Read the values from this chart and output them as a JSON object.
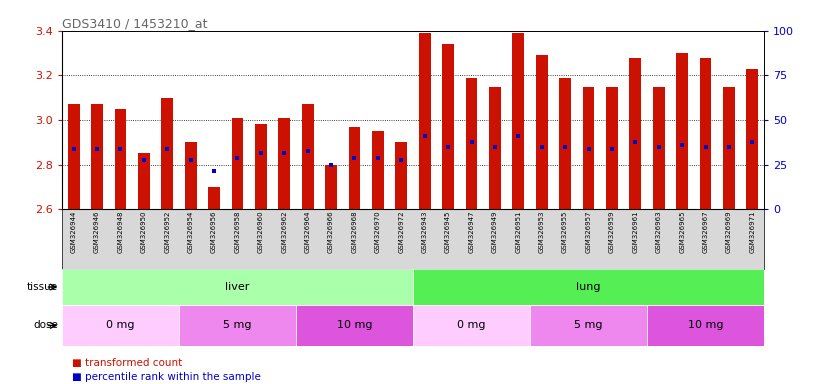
{
  "title": "GDS3410 / 1453210_at",
  "samples": [
    "GSM326944",
    "GSM326946",
    "GSM326948",
    "GSM326950",
    "GSM326952",
    "GSM326954",
    "GSM326956",
    "GSM326958",
    "GSM326960",
    "GSM326962",
    "GSM326964",
    "GSM326966",
    "GSM326968",
    "GSM326970",
    "GSM326972",
    "GSM326943",
    "GSM326945",
    "GSM326947",
    "GSM326949",
    "GSM326951",
    "GSM326953",
    "GSM326955",
    "GSM326957",
    "GSM326959",
    "GSM326961",
    "GSM326963",
    "GSM326965",
    "GSM326967",
    "GSM326969",
    "GSM326971"
  ],
  "bar_heights": [
    3.07,
    3.07,
    3.05,
    2.85,
    3.1,
    2.9,
    2.7,
    3.01,
    2.98,
    3.01,
    3.07,
    2.8,
    2.97,
    2.95,
    2.9,
    3.39,
    3.34,
    3.19,
    3.15,
    3.39,
    3.29,
    3.19,
    3.15,
    3.15,
    3.28,
    3.15,
    3.3,
    3.28,
    3.15,
    3.23
  ],
  "percentile_values": [
    2.87,
    2.87,
    2.87,
    2.82,
    2.87,
    2.82,
    2.77,
    2.83,
    2.85,
    2.85,
    2.86,
    2.8,
    2.83,
    2.83,
    2.82,
    2.93,
    2.88,
    2.9,
    2.88,
    2.93,
    2.88,
    2.88,
    2.87,
    2.87,
    2.9,
    2.88,
    2.89,
    2.88,
    2.88,
    2.9
  ],
  "ylim": [
    2.6,
    3.4
  ],
  "y_ticks": [
    2.6,
    2.8,
    3.0,
    3.2,
    3.4
  ],
  "right_ticks": [
    0,
    25,
    50,
    75,
    100
  ],
  "tissue_groups": [
    {
      "label": "liver",
      "start": 0,
      "end": 15,
      "color": "#aaffaa"
    },
    {
      "label": "lung",
      "start": 15,
      "end": 30,
      "color": "#55ee55"
    }
  ],
  "dose_groups": [
    {
      "label": "0 mg",
      "start": 0,
      "end": 5,
      "color": "#ffccff"
    },
    {
      "label": "5 mg",
      "start": 5,
      "end": 10,
      "color": "#ee88ee"
    },
    {
      "label": "10 mg",
      "start": 10,
      "end": 15,
      "color": "#dd55dd"
    },
    {
      "label": "0 mg",
      "start": 15,
      "end": 20,
      "color": "#ffccff"
    },
    {
      "label": "5 mg",
      "start": 20,
      "end": 25,
      "color": "#ee88ee"
    },
    {
      "label": "10 mg",
      "start": 25,
      "end": 30,
      "color": "#dd55dd"
    }
  ],
  "bar_color": "#cc1100",
  "percentile_color": "#0000cc",
  "bar_width": 0.5,
  "baseline": 2.6,
  "plot_bg": "#ffffff",
  "xtick_bg": "#d8d8d8",
  "title_color": "#666666",
  "left_tick_color": "#cc1100",
  "right_tick_color": "#0000cc",
  "legend_bar_label": "transformed count",
  "legend_pct_label": "percentile rank within the sample"
}
